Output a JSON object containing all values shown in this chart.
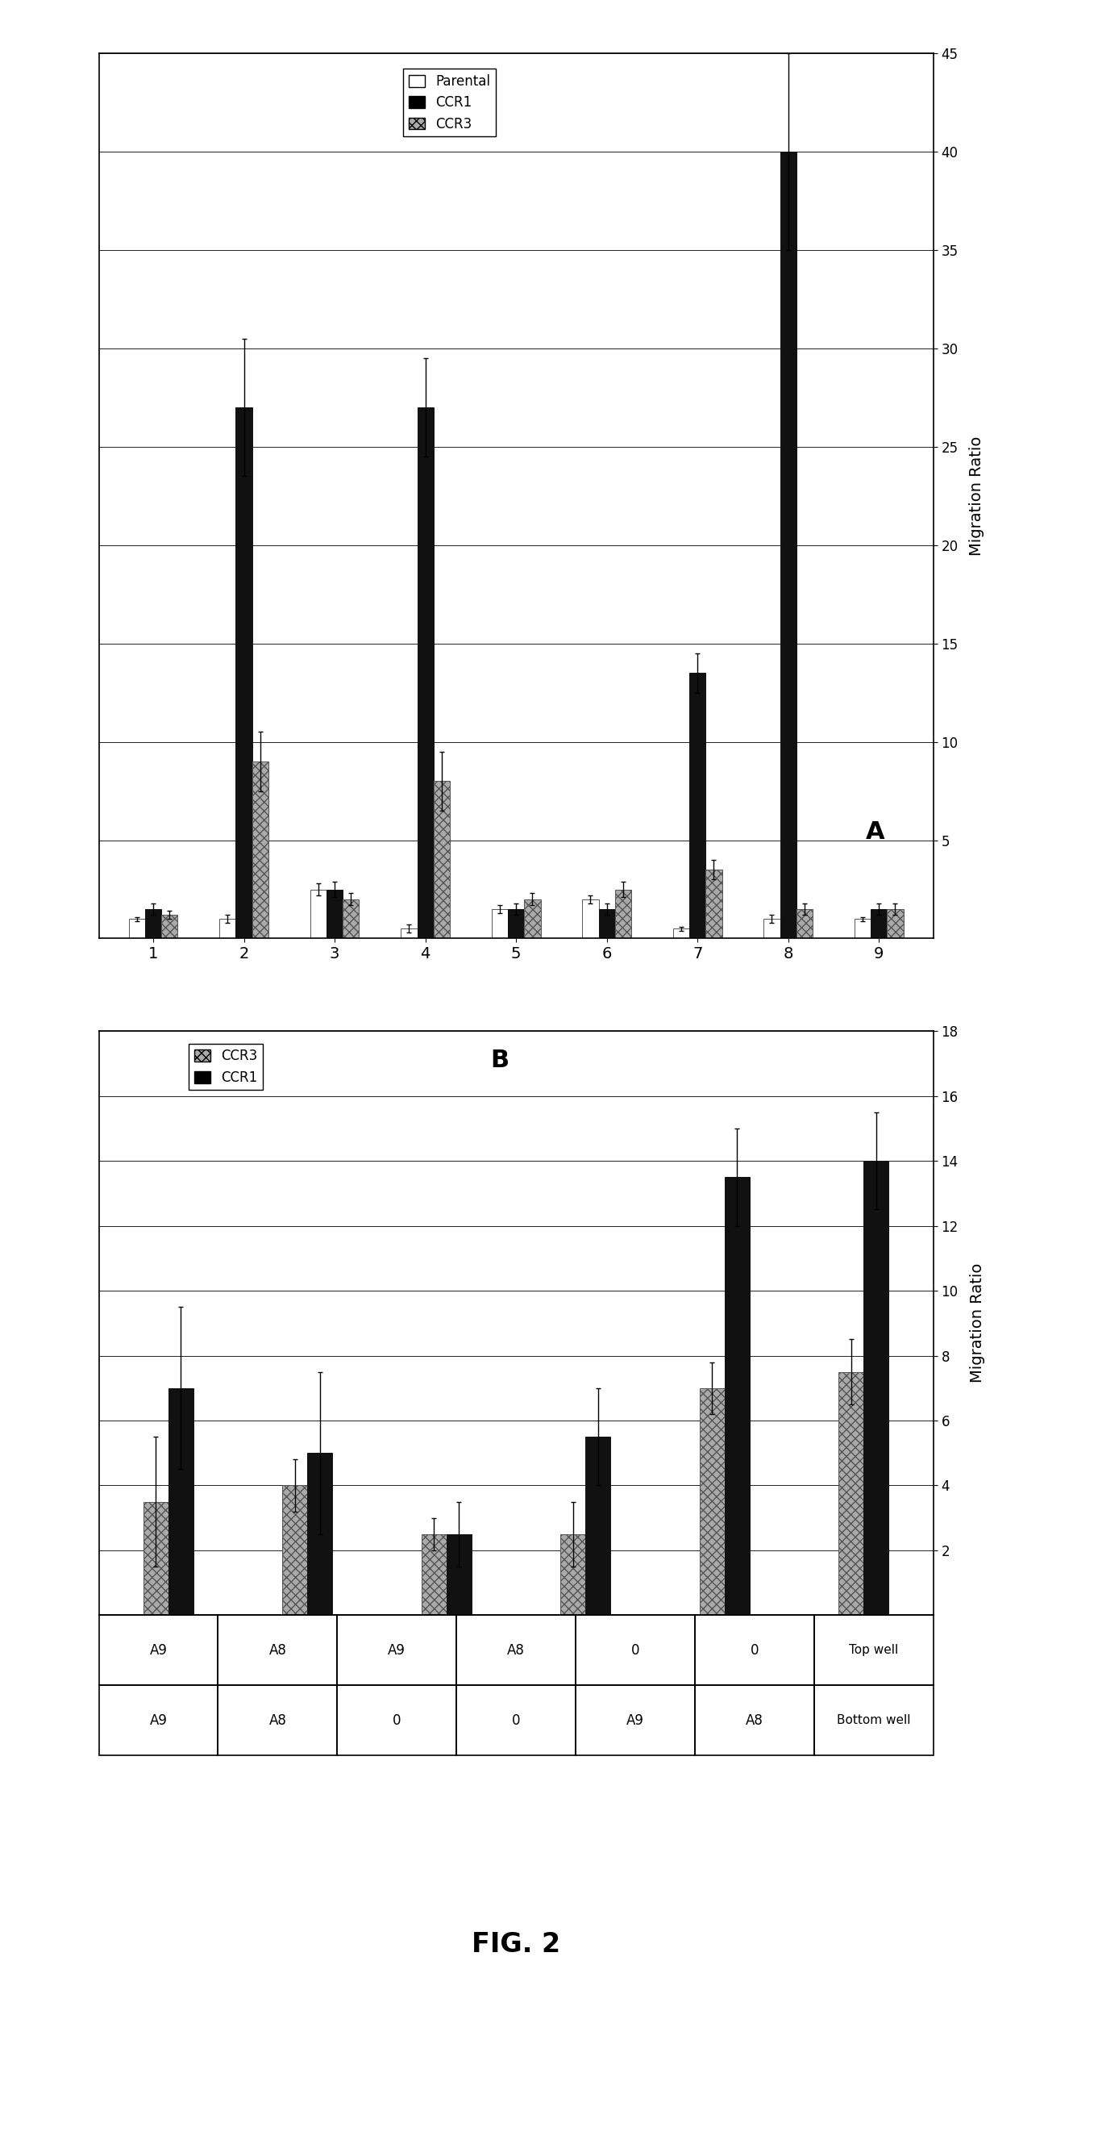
{
  "chart_A": {
    "ylabel": "Migration Ratio",
    "xlabels": [
      "1",
      "2",
      "3",
      "4",
      "5",
      "6",
      "7",
      "8",
      "9"
    ],
    "ylim": [
      0,
      45
    ],
    "yticks": [
      5,
      10,
      15,
      20,
      25,
      30,
      35,
      40,
      45
    ],
    "series": {
      "Parental": {
        "values": [
          1.0,
          1.0,
          2.5,
          0.5,
          1.5,
          2.0,
          0.5,
          1.0,
          1.0
        ],
        "color": "white",
        "edgecolor": "#555555",
        "hatch": ""
      },
      "CCR1": {
        "values": [
          1.5,
          27.0,
          2.5,
          27.0,
          1.5,
          1.5,
          13.5,
          40.0,
          1.5
        ],
        "color": "#111111",
        "edgecolor": "#111111",
        "hatch": ""
      },
      "CCR3": {
        "values": [
          1.2,
          9.0,
          2.0,
          8.0,
          2.0,
          2.5,
          3.5,
          1.5,
          1.5
        ],
        "color": "#aaaaaa",
        "edgecolor": "#555555",
        "hatch": "xxx"
      }
    },
    "errors": {
      "Parental": [
        0.1,
        0.2,
        0.3,
        0.2,
        0.2,
        0.2,
        0.1,
        0.2,
        0.1
      ],
      "CCR1": [
        0.3,
        3.5,
        0.4,
        2.5,
        0.3,
        0.3,
        1.0,
        5.0,
        0.3
      ],
      "CCR3": [
        0.2,
        1.5,
        0.3,
        1.5,
        0.3,
        0.4,
        0.5,
        0.3,
        0.3
      ]
    },
    "legend_labels": [
      "Parental",
      "CCR1",
      "CCR3"
    ]
  },
  "chart_B": {
    "ylabel": "Migration Ratio",
    "ylim": [
      0,
      18
    ],
    "yticks": [
      2,
      4,
      6,
      8,
      10,
      12,
      14,
      16,
      18
    ],
    "series": {
      "CCR3": {
        "values": [
          3.5,
          4.0,
          2.5,
          2.5,
          7.0,
          7.5
        ],
        "color": "#aaaaaa",
        "edgecolor": "#555555",
        "hatch": "xxx"
      },
      "CCR1": {
        "values": [
          7.0,
          5.0,
          2.5,
          5.5,
          13.5,
          14.0
        ],
        "color": "#111111",
        "edgecolor": "#111111",
        "hatch": ""
      }
    },
    "errors": {
      "CCR3": [
        2.0,
        0.8,
        0.5,
        1.0,
        0.8,
        1.0
      ],
      "CCR1": [
        2.5,
        2.5,
        1.0,
        1.5,
        1.5,
        1.5
      ]
    },
    "table": {
      "row_labels": [
        "Top well",
        "Bottom well"
      ],
      "col_data": [
        [
          "A9",
          "A9"
        ],
        [
          "A8",
          "A8"
        ],
        [
          "A9",
          "0"
        ],
        [
          "A8",
          "0"
        ],
        [
          "0",
          "A9"
        ],
        [
          "0",
          "A8"
        ]
      ]
    }
  },
  "fig_label": "FIG. 2",
  "background_color": "#ffffff"
}
